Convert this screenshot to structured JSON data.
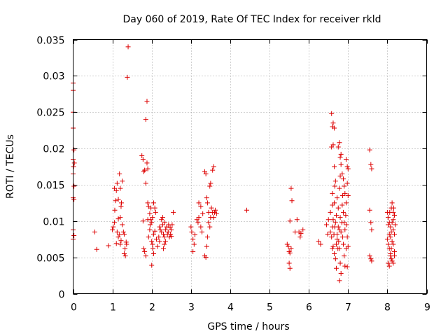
{
  "chart_data": {
    "type": "scatter",
    "title": "Day 060 of 2019, Rate Of TEC Index for receiver rkld",
    "xlabel": "GPS time / hours",
    "ylabel": "ROTI / TECUs",
    "xlim": [
      0,
      9
    ],
    "ylim": [
      0,
      0.035
    ],
    "xticks": [
      0,
      1,
      2,
      3,
      4,
      5,
      6,
      7,
      8,
      9
    ],
    "xtick_labels": [
      "0",
      "1",
      "2",
      "3",
      "4",
      "5",
      "6",
      "7",
      "8",
      "9"
    ],
    "yticks": [
      0,
      0.005,
      0.01,
      0.015,
      0.02,
      0.025,
      0.03,
      0.035
    ],
    "ytick_labels": [
      "0",
      "0.005",
      "0.01",
      "0.015",
      "0.02",
      "0.025",
      "0.03",
      "0.035"
    ],
    "grid": true,
    "marker": "+",
    "color": "#dd0000",
    "series": [
      {
        "name": "ROTI",
        "points": [
          [
            0.0,
            0.029
          ],
          [
            0.0,
            0.028
          ],
          [
            0.0,
            0.025
          ],
          [
            0.0,
            0.0228
          ],
          [
            0.02,
            0.0198
          ],
          [
            0.0,
            0.0185
          ],
          [
            0.03,
            0.018
          ],
          [
            0.01,
            0.0175
          ],
          [
            0.0,
            0.0165
          ],
          [
            0.02,
            0.0148
          ],
          [
            0.0,
            0.0132
          ],
          [
            0.02,
            0.013
          ],
          [
            0.0,
            0.0088
          ],
          [
            0.02,
            0.008
          ],
          [
            0.0,
            0.0075
          ],
          [
            0.55,
            0.0085
          ],
          [
            0.6,
            0.0061
          ],
          [
            0.9,
            0.0066
          ],
          [
            1.0,
            0.0088
          ],
          [
            1.02,
            0.0092
          ],
          [
            1.05,
            0.0098
          ],
          [
            1.06,
            0.0115
          ],
          [
            1.08,
            0.0128
          ],
          [
            1.05,
            0.0145
          ],
          [
            1.1,
            0.0142
          ],
          [
            1.12,
            0.0152
          ],
          [
            1.15,
            0.013
          ],
          [
            1.18,
            0.0165
          ],
          [
            1.2,
            0.0145
          ],
          [
            1.22,
            0.012
          ],
          [
            1.15,
            0.0103
          ],
          [
            1.12,
            0.0085
          ],
          [
            1.15,
            0.0078
          ],
          [
            1.18,
            0.0081
          ],
          [
            1.2,
            0.0068
          ],
          [
            1.22,
            0.0073
          ],
          [
            1.25,
            0.0155
          ],
          [
            1.28,
            0.0085
          ],
          [
            1.3,
            0.0055
          ],
          [
            1.32,
            0.0062
          ],
          [
            1.35,
            0.0071
          ],
          [
            1.25,
            0.0095
          ],
          [
            1.3,
            0.0082
          ],
          [
            1.33,
            0.0052
          ],
          [
            1.36,
            0.0068
          ],
          [
            1.1,
            0.0069
          ],
          [
            1.2,
            0.0105
          ],
          [
            1.23,
            0.0125
          ],
          [
            1.4,
            0.034
          ],
          [
            1.38,
            0.0298
          ],
          [
            1.75,
            0.019
          ],
          [
            1.78,
            0.0185
          ],
          [
            1.8,
            0.0168
          ],
          [
            1.82,
            0.017
          ],
          [
            1.85,
            0.0152
          ],
          [
            1.88,
            0.0265
          ],
          [
            1.85,
            0.024
          ],
          [
            1.88,
            0.018
          ],
          [
            1.9,
            0.0172
          ],
          [
            1.78,
            0.01
          ],
          [
            1.8,
            0.0062
          ],
          [
            1.82,
            0.0058
          ],
          [
            1.85,
            0.0052
          ],
          [
            1.9,
            0.0125
          ],
          [
            1.92,
            0.012
          ],
          [
            1.95,
            0.011
          ],
          [
            1.98,
            0.0102
          ],
          [
            2.0,
            0.0098
          ],
          [
            1.95,
            0.0088
          ],
          [
            1.92,
            0.0078
          ],
          [
            2.0,
            0.0072
          ],
          [
            2.02,
            0.0068
          ],
          [
            2.05,
            0.0082
          ],
          [
            2.03,
            0.0062
          ],
          [
            2.05,
            0.0055
          ],
          [
            2.0,
            0.0039
          ],
          [
            2.08,
            0.0118
          ],
          [
            2.1,
            0.0112
          ],
          [
            2.05,
            0.0125
          ],
          [
            1.96,
            0.0095
          ],
          [
            1.9,
            0.0102
          ],
          [
            2.08,
            0.0086
          ],
          [
            2.12,
            0.0075
          ],
          [
            2.15,
            0.0065
          ],
          [
            2.18,
            0.0078
          ],
          [
            2.2,
            0.0072
          ],
          [
            2.02,
            0.0105
          ],
          [
            1.98,
            0.0118
          ],
          [
            2.2,
            0.0092
          ],
          [
            2.22,
            0.0088
          ],
          [
            2.25,
            0.0085
          ],
          [
            2.25,
            0.0102
          ],
          [
            2.28,
            0.0095
          ],
          [
            2.3,
            0.0082
          ],
          [
            2.32,
            0.0078
          ],
          [
            2.35,
            0.0088
          ],
          [
            2.38,
            0.0092
          ],
          [
            2.3,
            0.0062
          ],
          [
            2.32,
            0.0068
          ],
          [
            2.35,
            0.0072
          ],
          [
            2.4,
            0.0082
          ],
          [
            2.42,
            0.0085
          ],
          [
            2.45,
            0.0078
          ],
          [
            2.48,
            0.0082
          ],
          [
            2.5,
            0.0088
          ],
          [
            2.52,
            0.0095
          ],
          [
            2.55,
            0.0112
          ],
          [
            2.28,
            0.0105
          ],
          [
            2.33,
            0.0098
          ],
          [
            2.43,
            0.0095
          ],
          [
            2.47,
            0.0091
          ],
          [
            2.5,
            0.0079
          ],
          [
            3.0,
            0.0092
          ],
          [
            3.02,
            0.0085
          ],
          [
            3.05,
            0.0075
          ],
          [
            3.08,
            0.0068
          ],
          [
            3.05,
            0.0058
          ],
          [
            3.1,
            0.0081
          ],
          [
            3.15,
            0.0102
          ],
          [
            3.2,
            0.0105
          ],
          [
            3.18,
            0.0098
          ],
          [
            3.2,
            0.0125
          ],
          [
            3.25,
            0.012
          ],
          [
            3.3,
            0.011
          ],
          [
            3.25,
            0.0092
          ],
          [
            3.28,
            0.0085
          ],
          [
            3.35,
            0.0168
          ],
          [
            3.38,
            0.0165
          ],
          [
            3.4,
            0.0132
          ],
          [
            3.42,
            0.0125
          ],
          [
            3.45,
            0.0112
          ],
          [
            3.45,
            0.0098
          ],
          [
            3.42,
            0.0078
          ],
          [
            3.4,
            0.0065
          ],
          [
            3.35,
            0.0052
          ],
          [
            3.38,
            0.005
          ],
          [
            3.48,
            0.0148
          ],
          [
            3.5,
            0.0152
          ],
          [
            3.52,
            0.0118
          ],
          [
            3.55,
            0.0112
          ],
          [
            3.58,
            0.0105
          ],
          [
            3.55,
            0.017
          ],
          [
            3.58,
            0.0175
          ],
          [
            3.6,
            0.0112
          ],
          [
            3.62,
            0.0115
          ],
          [
            3.65,
            0.011
          ],
          [
            3.48,
            0.0092
          ],
          [
            3.5,
            0.0105
          ],
          [
            4.42,
            0.0115
          ],
          [
            5.45,
            0.0068
          ],
          [
            5.48,
            0.0065
          ],
          [
            5.5,
            0.0058
          ],
          [
            5.52,
            0.0056
          ],
          [
            5.5,
            0.0042
          ],
          [
            5.55,
            0.0062
          ],
          [
            5.52,
            0.01
          ],
          [
            5.55,
            0.0145
          ],
          [
            5.57,
            0.0128
          ],
          [
            5.52,
            0.0035
          ],
          [
            5.65,
            0.0085
          ],
          [
            5.7,
            0.0102
          ],
          [
            5.75,
            0.0085
          ],
          [
            5.78,
            0.0078
          ],
          [
            5.8,
            0.0083
          ],
          [
            5.85,
            0.0088
          ],
          [
            6.25,
            0.0072
          ],
          [
            6.3,
            0.0068
          ],
          [
            6.45,
            0.0095
          ],
          [
            6.48,
            0.0082
          ],
          [
            6.5,
            0.0102
          ],
          [
            6.55,
            0.0085
          ],
          [
            6.58,
            0.0078
          ],
          [
            6.6,
            0.0092
          ],
          [
            6.55,
            0.0112
          ],
          [
            6.6,
            0.0122
          ],
          [
            6.58,
            0.0248
          ],
          [
            6.6,
            0.023
          ],
          [
            6.62,
            0.0235
          ],
          [
            6.65,
            0.0228
          ],
          [
            6.58,
            0.0202
          ],
          [
            6.62,
            0.0205
          ],
          [
            6.65,
            0.0175
          ],
          [
            6.68,
            0.0155
          ],
          [
            6.6,
            0.0138
          ],
          [
            6.65,
            0.0125
          ],
          [
            6.62,
            0.0065
          ],
          [
            6.65,
            0.0055
          ],
          [
            6.68,
            0.0048
          ],
          [
            6.7,
            0.0068
          ],
          [
            6.72,
            0.0075
          ],
          [
            6.7,
            0.0035
          ],
          [
            6.75,
            0.0092
          ],
          [
            6.78,
            0.0088
          ],
          [
            6.8,
            0.0105
          ],
          [
            6.82,
            0.0085
          ],
          [
            6.78,
            0.0062
          ],
          [
            6.8,
            0.0042
          ],
          [
            6.82,
            0.0028
          ],
          [
            6.78,
            0.0018
          ],
          [
            6.75,
            0.0118
          ],
          [
            6.78,
            0.0145
          ],
          [
            6.8,
            0.0162
          ],
          [
            6.82,
            0.0178
          ],
          [
            6.8,
            0.0188
          ],
          [
            6.75,
            0.0202
          ],
          [
            6.78,
            0.0208
          ],
          [
            6.82,
            0.0192
          ],
          [
            6.85,
            0.0165
          ],
          [
            6.88,
            0.0158
          ],
          [
            6.9,
            0.0148
          ],
          [
            6.92,
            0.0138
          ],
          [
            6.88,
            0.0112
          ],
          [
            6.9,
            0.0098
          ],
          [
            6.92,
            0.0088
          ],
          [
            6.95,
            0.0062
          ],
          [
            6.9,
            0.0052
          ],
          [
            6.92,
            0.0038
          ],
          [
            6.85,
            0.0122
          ],
          [
            6.95,
            0.0185
          ],
          [
            6.98,
            0.0175
          ],
          [
            7.0,
            0.0172
          ],
          [
            6.98,
            0.0152
          ],
          [
            7.0,
            0.0135
          ],
          [
            6.95,
            0.0125
          ],
          [
            6.72,
            0.0132
          ],
          [
            6.7,
            0.0108
          ],
          [
            6.68,
            0.0098
          ],
          [
            6.72,
            0.0082
          ],
          [
            6.74,
            0.0062
          ],
          [
            6.76,
            0.0072
          ],
          [
            6.84,
            0.0098
          ],
          [
            6.86,
            0.0078
          ],
          [
            6.88,
            0.0068
          ],
          [
            6.94,
            0.0108
          ],
          [
            6.96,
            0.0095
          ],
          [
            6.98,
            0.0078
          ],
          [
            7.0,
            0.0065
          ],
          [
            6.98,
            0.0037
          ],
          [
            6.66,
            0.0092
          ],
          [
            6.64,
            0.0082
          ],
          [
            6.62,
            0.0102
          ],
          [
            6.86,
            0.0135
          ],
          [
            6.6,
            0.0062
          ],
          [
            6.66,
            0.0148
          ],
          [
            7.55,
            0.0198
          ],
          [
            7.58,
            0.0178
          ],
          [
            7.6,
            0.0172
          ],
          [
            7.55,
            0.0115
          ],
          [
            7.58,
            0.0098
          ],
          [
            7.6,
            0.0088
          ],
          [
            7.55,
            0.0052
          ],
          [
            7.58,
            0.0048
          ],
          [
            7.6,
            0.0045
          ],
          [
            8.0,
            0.0112
          ],
          [
            8.02,
            0.0105
          ],
          [
            8.05,
            0.0098
          ],
          [
            8.08,
            0.0092
          ],
          [
            8.1,
            0.0085
          ],
          [
            8.0,
            0.0075
          ],
          [
            8.02,
            0.0068
          ],
          [
            8.05,
            0.0062
          ],
          [
            8.08,
            0.0055
          ],
          [
            8.1,
            0.0048
          ],
          [
            8.02,
            0.0042
          ],
          [
            8.05,
            0.0038
          ],
          [
            8.08,
            0.0052
          ],
          [
            8.1,
            0.0062
          ],
          [
            8.12,
            0.0072
          ],
          [
            8.05,
            0.0082
          ],
          [
            8.08,
            0.0078
          ],
          [
            8.1,
            0.0118
          ],
          [
            8.12,
            0.0125
          ],
          [
            8.15,
            0.0112
          ],
          [
            8.18,
            0.0108
          ],
          [
            8.12,
            0.0098
          ],
          [
            8.15,
            0.0088
          ],
          [
            8.18,
            0.0082
          ],
          [
            8.15,
            0.0068
          ],
          [
            8.18,
            0.0058
          ],
          [
            8.12,
            0.0045
          ],
          [
            8.15,
            0.0042
          ],
          [
            8.18,
            0.0052
          ],
          [
            8.15,
            0.0102
          ],
          [
            8.02,
            0.0095
          ],
          [
            8.2,
            0.0095
          ],
          [
            8.06,
            0.0112
          ],
          [
            8.16,
            0.0118
          ]
        ]
      }
    ]
  }
}
